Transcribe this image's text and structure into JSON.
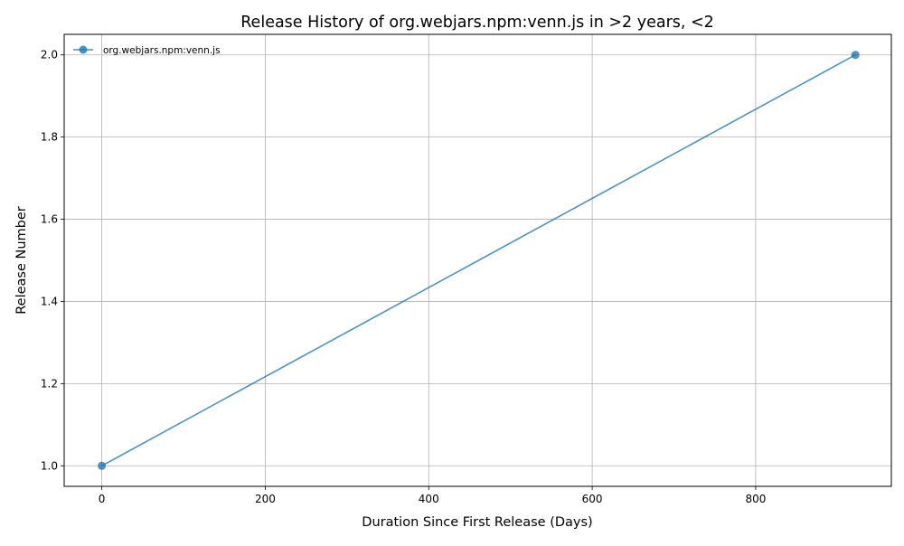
{
  "chart_data": {
    "type": "line",
    "title": "Release History of org.webjars.npm:venn.js in >2 years, <2",
    "xlabel": "Duration Since First Release (Days)",
    "ylabel": "Release Number",
    "xlim": [
      -46,
      966
    ],
    "ylim": [
      0.95,
      2.05
    ],
    "xticks": [
      0,
      200,
      400,
      600,
      800
    ],
    "xtick_labels": [
      "0",
      "200",
      "400",
      "600",
      "800"
    ],
    "yticks": [
      1.0,
      1.2,
      1.4,
      1.6,
      1.8,
      2.0
    ],
    "ytick_labels": [
      "1.0",
      "1.2",
      "1.4",
      "1.6",
      "1.8",
      "2.0"
    ],
    "grid": true,
    "legend_position": "top-left",
    "series": [
      {
        "name": "org.webjars.npm:venn.js",
        "color": "#1f77b4",
        "x": [
          0,
          922
        ],
        "y": [
          1,
          2
        ]
      }
    ]
  }
}
